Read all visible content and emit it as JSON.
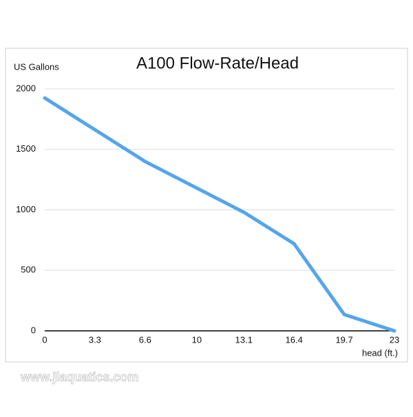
{
  "chart_data": {
    "type": "line",
    "title": "A100 Flow-Rate/Head",
    "y_label": "US Gallons",
    "x_label": "head (ft.)",
    "x": [
      0,
      6.6,
      13.1,
      16.4,
      19.7,
      23
    ],
    "series": [
      {
        "name": "A100",
        "color": "#55a5ea",
        "values": [
          1925,
          1400,
          980,
          720,
          135,
          0
        ]
      }
    ],
    "xlim": [
      0,
      23
    ],
    "xticks": [
      0,
      3.3,
      6.6,
      10,
      13.1,
      16.4,
      19.7,
      23
    ],
    "ylim": [
      0,
      2000
    ],
    "yticks": [
      0,
      500,
      1000,
      1500,
      2000
    ],
    "grid": true
  },
  "watermark": "www.jlaquatics.com"
}
